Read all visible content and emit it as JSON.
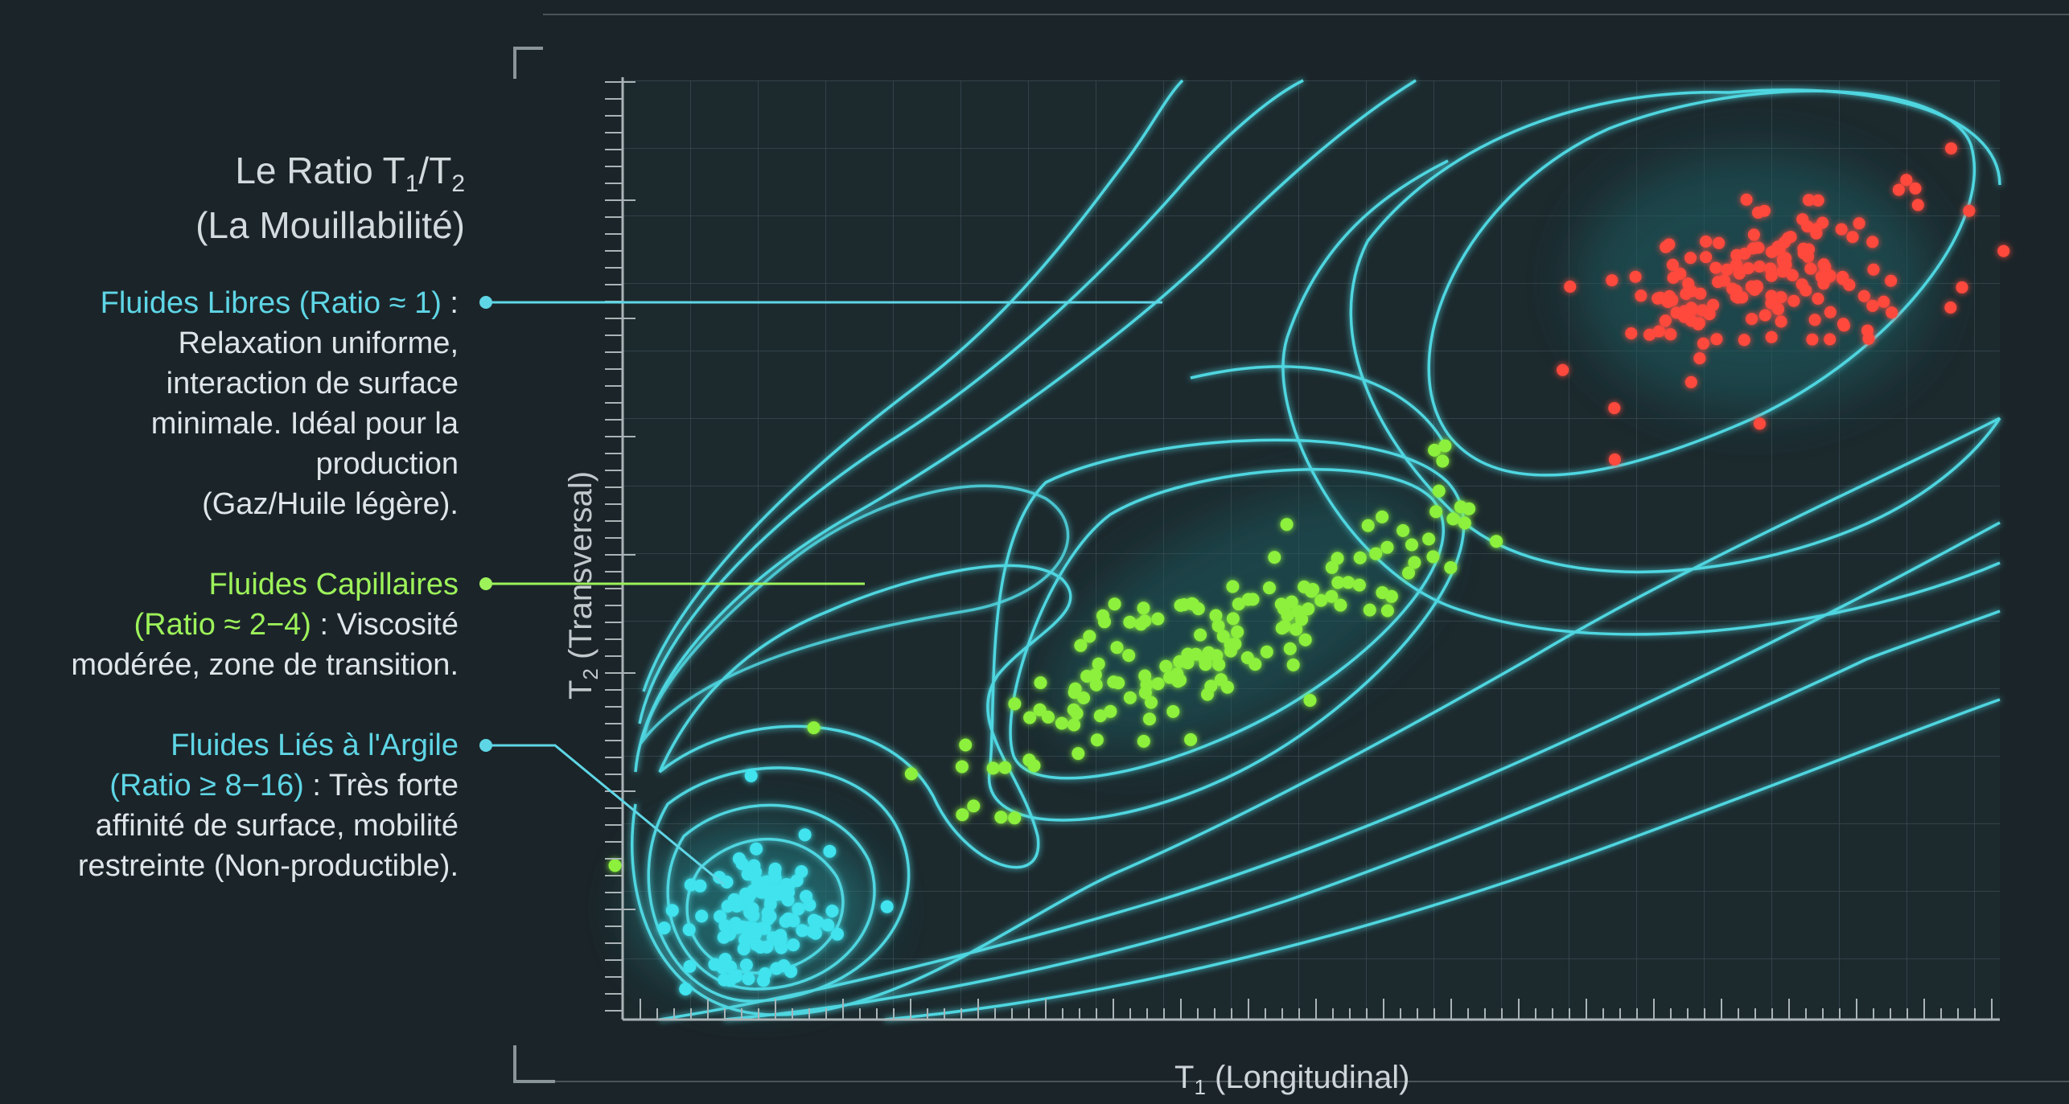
{
  "header": {
    "title_main": "Le Ratio T",
    "title_sub1": "1",
    "title_slash": "/T",
    "title_sub2": "2",
    "subtitle": "(La Mouillabilité)"
  },
  "groups": [
    {
      "name": "Fluides Libres (Ratio ≈ 1)",
      "suffix": " :",
      "lines": [
        "Relaxation uniforme,",
        "interaction de surface",
        "minimale. Idéal pour la",
        "production",
        "(Gaz/Huile légère)."
      ],
      "color": "#5fd6e6"
    },
    {
      "name": "Fluides Capillaires",
      "name_line2": "(Ratio ≈ 2−4)",
      "suffix": " : Viscosité",
      "lines": [
        "modérée, zone de transition."
      ],
      "color": "#9df25a"
    },
    {
      "name": "Fluides Liés à l'Argile",
      "name_line2": "(Ratio ≥ 8−16)",
      "suffix": " : Très forte",
      "lines": [
        "affinité de surface, mobilité",
        "restreinte (Non-productible)."
      ],
      "color": "#5fd6e6"
    }
  ],
  "axes": {
    "x_main": "T",
    "x_sub": "1",
    "x_rest": " (Longitudinal)",
    "y_main": "T",
    "y_sub": "2",
    "y_rest": " (Transversal)"
  },
  "colors": {
    "background": "#1b2529",
    "contour": "#4fd6e0",
    "cluster_red": "#ff4a3d",
    "cluster_green": "#8cf03c",
    "cluster_cyan": "#3fe3ee"
  }
}
